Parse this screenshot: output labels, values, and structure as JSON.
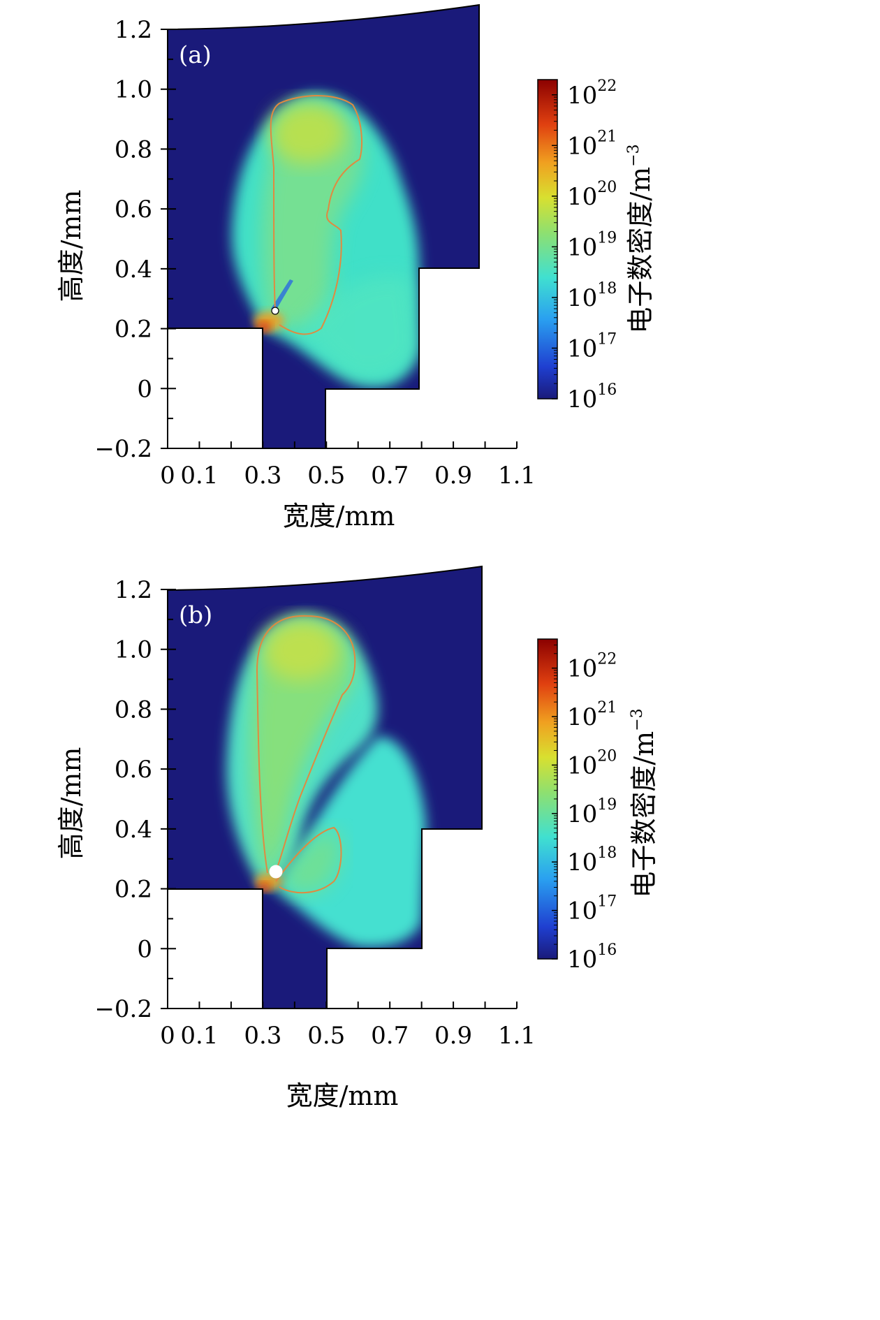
{
  "colors": {
    "background_plasma": "#1a1a7a",
    "contour": "#e08a40",
    "cmap": [
      "#1a1a7a",
      "#1f3fd0",
      "#2aa0f0",
      "#40e0d0",
      "#8ee070",
      "#d8e030",
      "#f0a020",
      "#e04010",
      "#8b0000"
    ]
  },
  "chart_data": [
    {
      "type": "heatmap",
      "panel_label": "(a)",
      "xlabel": "宽度/mm",
      "ylabel": "高度/mm",
      "xlim": [
        0,
        1.1
      ],
      "ylim": [
        -0.2,
        1.2
      ],
      "x_ticks": [
        "0",
        "0.1",
        "0.3",
        "0.5",
        "0.7",
        "0.9",
        "1.1"
      ],
      "y_ticks": [
        "−0.2",
        "0",
        "0.2",
        "0.4",
        "0.6",
        "0.8",
        "1.0",
        "1.2"
      ],
      "colorbar": {
        "title": "电子数密度/m",
        "title_exp": "−3",
        "ticks": [
          {
            "base": "10",
            "exp": "16"
          },
          {
            "base": "10",
            "exp": "17"
          },
          {
            "base": "10",
            "exp": "18"
          },
          {
            "base": "10",
            "exp": "19"
          },
          {
            "base": "10",
            "exp": "20"
          },
          {
            "base": "10",
            "exp": "21"
          },
          {
            "base": "10",
            "exp": "22"
          }
        ],
        "log_min": 16,
        "log_max": 22.3
      }
    },
    {
      "type": "heatmap",
      "panel_label": "(b)",
      "xlabel": "宽度/mm",
      "ylabel": "高度/mm",
      "xlim": [
        0,
        1.1
      ],
      "ylim": [
        -0.2,
        1.2
      ],
      "x_ticks": [
        "0",
        "0.1",
        "0.3",
        "0.5",
        "0.7",
        "0.9",
        "1.1"
      ],
      "y_ticks": [
        "−0.2",
        "0",
        "0.2",
        "0.4",
        "0.6",
        "0.8",
        "1.0",
        "1.2"
      ],
      "colorbar": {
        "title": "电子数密度/m",
        "title_exp": "−3",
        "ticks": [
          {
            "base": "10",
            "exp": "16"
          },
          {
            "base": "10",
            "exp": "17"
          },
          {
            "base": "10",
            "exp": "18"
          },
          {
            "base": "10",
            "exp": "19"
          },
          {
            "base": "10",
            "exp": "20"
          },
          {
            "base": "10",
            "exp": "21"
          },
          {
            "base": "10",
            "exp": "22"
          }
        ],
        "log_min": 16,
        "log_max": 22.6
      }
    }
  ]
}
